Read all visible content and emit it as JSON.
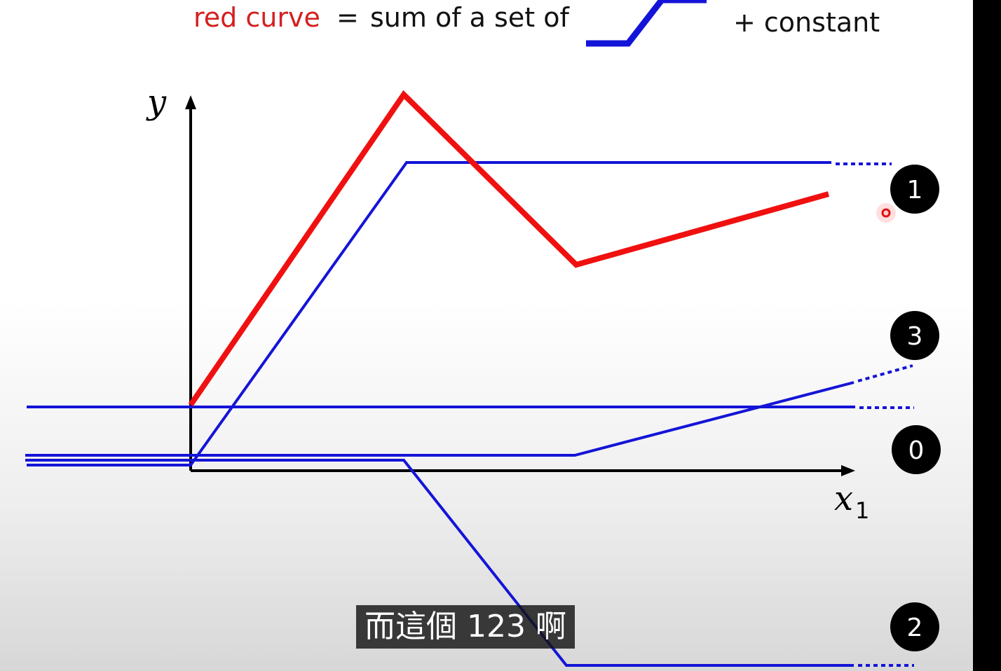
{
  "title": {
    "red_part": "red curve",
    "equals": "=",
    "middle": "sum of a set of",
    "suffix": "+ constant"
  },
  "axes": {
    "y_label": "y",
    "x_label": "x",
    "x_subscript": "1"
  },
  "badges": {
    "one": "1",
    "three": "3",
    "zero": "0",
    "two": "2"
  },
  "subtitle": "而這個 123 啊",
  "colors": {
    "red_curve": "#f01010",
    "blue_curve": "#1414d8",
    "axis": "#000000",
    "badge_bg": "#000000"
  }
}
